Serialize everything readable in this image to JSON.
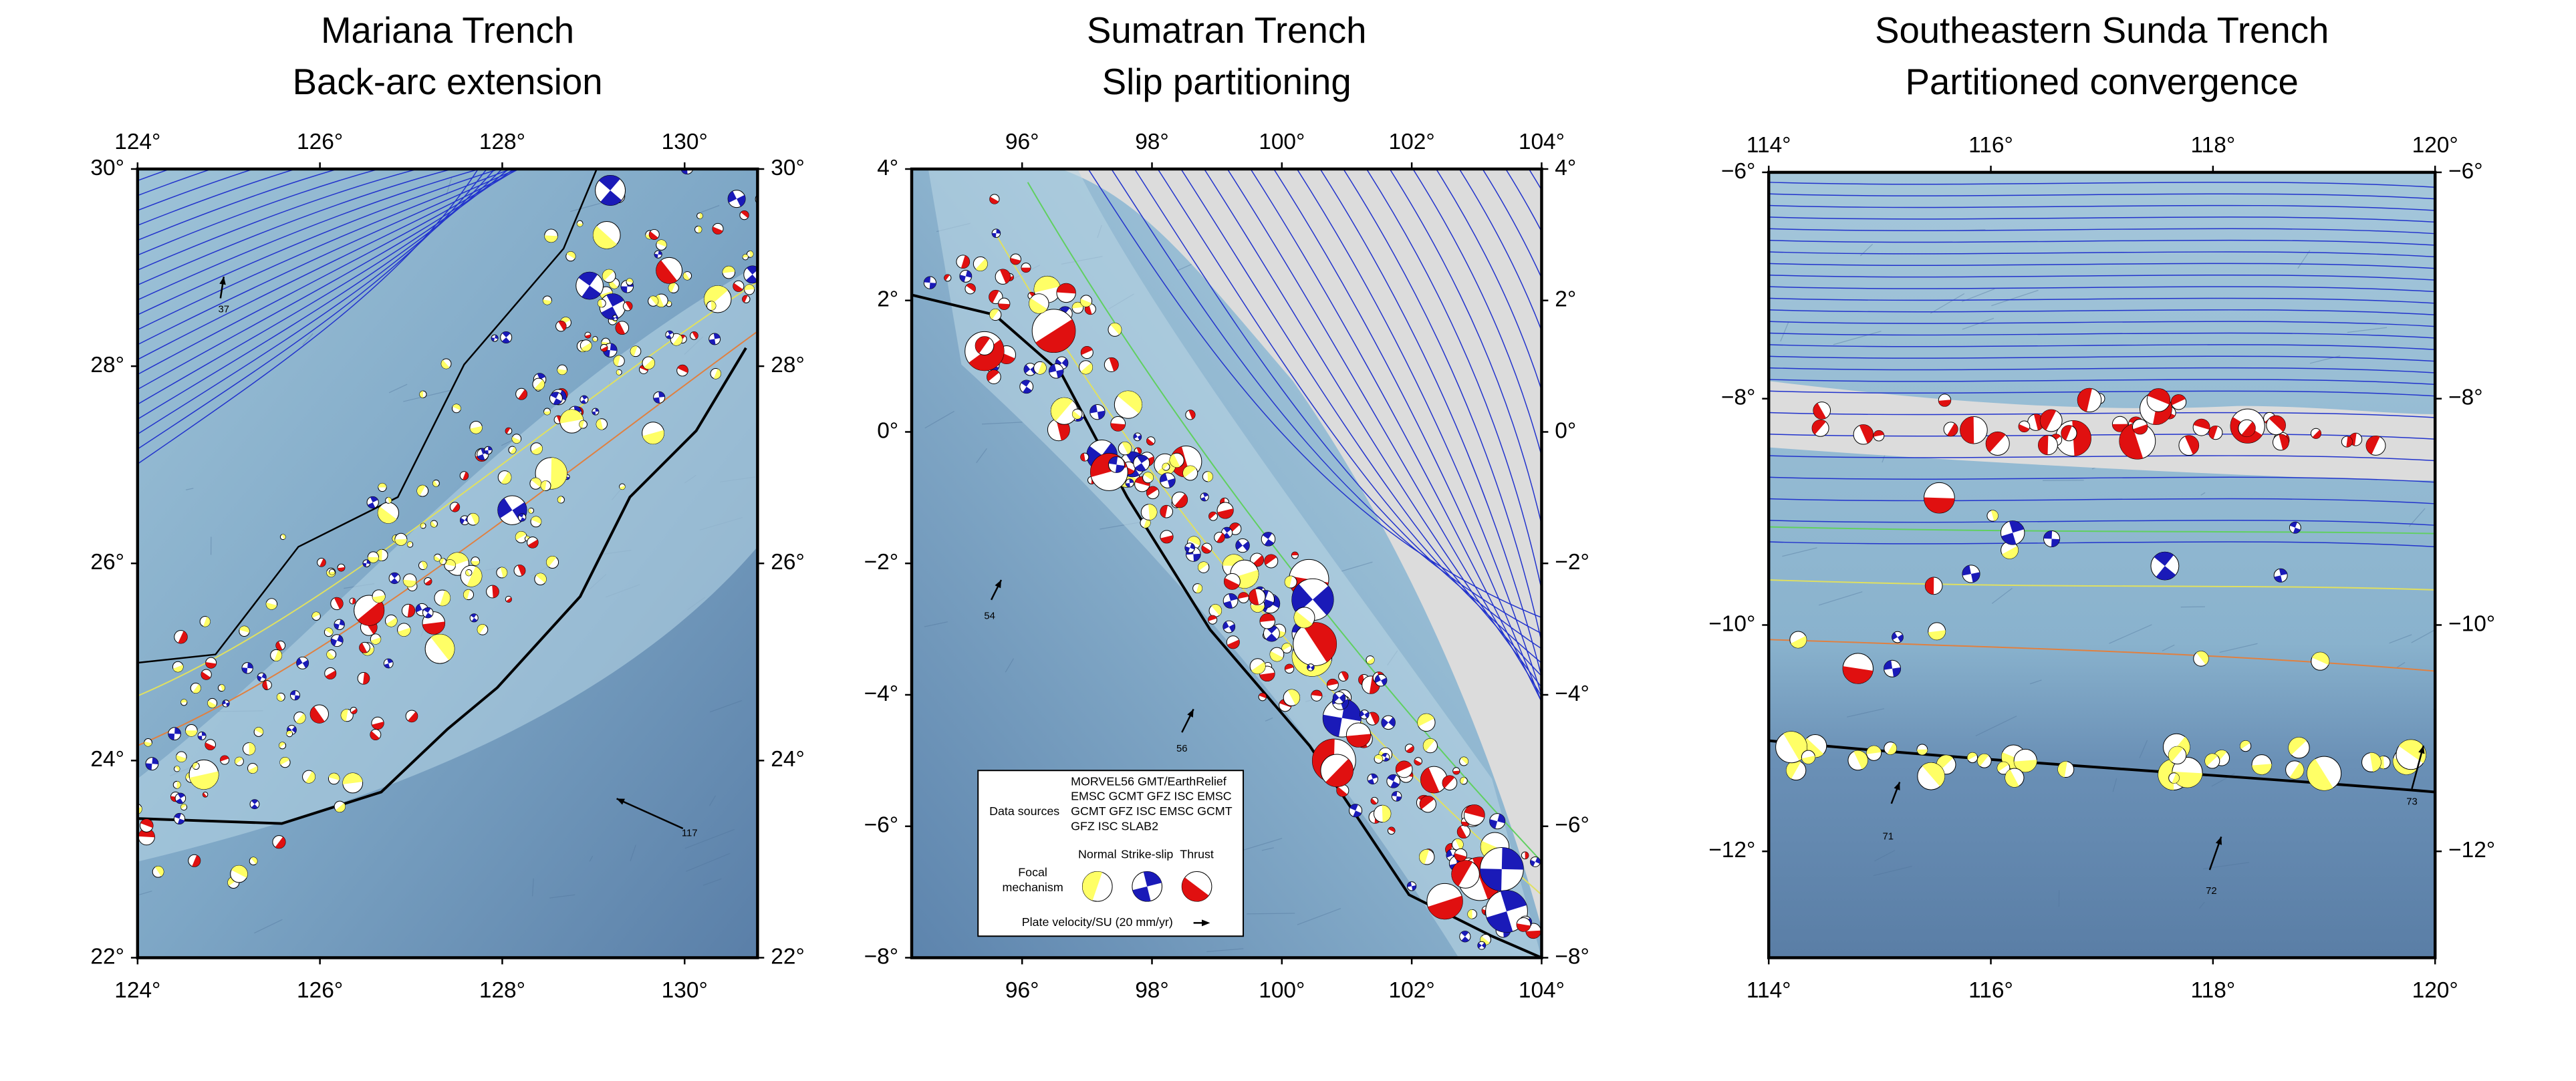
{
  "panels": [
    {
      "title": [
        "Mariana Trench",
        "Back-arc extension"
      ],
      "xlim": [
        124,
        130.8
      ],
      "ylim": [
        22,
        30
      ],
      "xticks": [
        {
          "value": 124,
          "label": "124°"
        },
        {
          "value": 126,
          "label": "126°"
        },
        {
          "value": 128,
          "label": "128°"
        },
        {
          "value": 130,
          "label": "130°"
        }
      ],
      "yticks": [
        {
          "value": 22,
          "label": "22°"
        },
        {
          "value": 24,
          "label": "24°"
        },
        {
          "value": 26,
          "label": "26°"
        },
        {
          "value": 28,
          "label": "28°"
        },
        {
          "value": 30,
          "label": "30°"
        }
      ],
      "velocities": [
        "37",
        "117"
      ]
    },
    {
      "title": [
        "Sumatran Trench",
        "Slip partitioning"
      ],
      "xlim": [
        94.3,
        104
      ],
      "ylim": [
        -8,
        4
      ],
      "xticks": [
        {
          "value": 96,
          "label": "96°"
        },
        {
          "value": 98,
          "label": "98°"
        },
        {
          "value": 100,
          "label": "100°"
        },
        {
          "value": 102,
          "label": "102°"
        },
        {
          "value": 104,
          "label": "104°"
        }
      ],
      "yticks": [
        {
          "value": -8,
          "label": "−8°"
        },
        {
          "value": -6,
          "label": "−6°"
        },
        {
          "value": -4,
          "label": "−4°"
        },
        {
          "value": -2,
          "label": "−2°"
        },
        {
          "value": 0,
          "label": "0°"
        },
        {
          "value": 2,
          "label": "2°"
        },
        {
          "value": 4,
          "label": "4°"
        }
      ],
      "velocities": [
        "54",
        "56"
      ],
      "legend": {
        "sources_label": "Data sources",
        "sources": [
          "MORVEL56 GMT/EarthRelief",
          "EMSC GCMT GFZ ISC EMSC",
          "GCMT GFZ ISC EMSC GCMT",
          "GFZ ISC SLAB2"
        ],
        "focal_label": [
          "Focal",
          "mechanism"
        ],
        "mechanisms": [
          "Normal",
          "Strike-slip",
          "Thrust"
        ],
        "velocity_label": "Plate velocity/SU (20 mm/yr)"
      }
    },
    {
      "title": [
        "Southeastern Sunda Trench",
        "Partitioned convergence"
      ],
      "xlim": [
        114,
        120
      ],
      "ylim": [
        -12.94,
        -6
      ],
      "xticks": [
        {
          "value": 114,
          "label": "114°"
        },
        {
          "value": 116,
          "label": "116°"
        },
        {
          "value": 118,
          "label": "118°"
        },
        {
          "value": 120,
          "label": "120°"
        }
      ],
      "yticks": [
        {
          "value": -12,
          "label": "−12°"
        },
        {
          "value": -10,
          "label": "−10°"
        },
        {
          "value": -8,
          "label": "−8°"
        },
        {
          "value": -6,
          "label": "−6°"
        }
      ],
      "velocities": [
        "71",
        "72",
        "73"
      ]
    }
  ]
}
